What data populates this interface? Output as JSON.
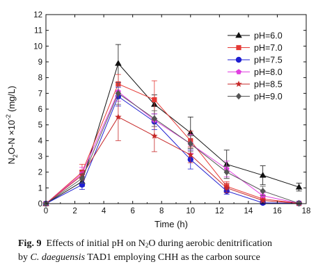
{
  "chart_data": {
    "type": "line",
    "xlabel": "Time (h)",
    "ylabel_parts": {
      "pre": "N",
      "sub": "2",
      "mid": "O-N ×10",
      "sup": "-2",
      "post": " (mg/L)"
    },
    "xlim": [
      0,
      18
    ],
    "ylim": [
      0,
      12
    ],
    "x_ticks": [
      0,
      2,
      4,
      6,
      8,
      10,
      12,
      14,
      16,
      18
    ],
    "y_ticks": [
      0,
      1,
      2,
      3,
      4,
      5,
      6,
      7,
      8,
      9,
      10,
      11,
      12
    ],
    "x": [
      0,
      2.5,
      5,
      7.5,
      10,
      12.5,
      15,
      17.5
    ],
    "legend_position": "top-right",
    "series": [
      {
        "name": "pH=6.0",
        "color": "#111111",
        "marker": "triangle",
        "values": [
          0,
          1.4,
          8.9,
          6.3,
          4.5,
          2.5,
          1.8,
          1.05
        ],
        "errors": [
          0,
          0.3,
          1.2,
          0.6,
          1.0,
          0.9,
          0.6,
          0.25
        ]
      },
      {
        "name": "pH=7.0",
        "color": "#e53935",
        "marker": "square",
        "values": [
          0,
          2.0,
          7.6,
          6.6,
          4.0,
          1.1,
          0.3,
          0.02
        ],
        "errors": [
          0,
          0.5,
          0.6,
          1.2,
          0.6,
          0.3,
          0.2,
          0.05
        ]
      },
      {
        "name": "pH=7.5",
        "color": "#1f1fd1",
        "marker": "circle",
        "values": [
          0,
          1.2,
          6.8,
          5.2,
          2.8,
          0.8,
          0.05,
          0.02
        ],
        "errors": [
          0,
          0.3,
          0.6,
          0.5,
          0.6,
          0.2,
          0.1,
          0.05
        ]
      },
      {
        "name": "pH=8.0",
        "color": "#e040e0",
        "marker": "pentagon",
        "values": [
          0,
          1.9,
          7.1,
          5.3,
          3.8,
          2.2,
          0.5,
          0.02
        ],
        "errors": [
          0,
          0.4,
          0.6,
          0.4,
          0.6,
          0.5,
          0.2,
          0.05
        ]
      },
      {
        "name": "pH=8.5",
        "color": "#c62828",
        "marker": "star",
        "values": [
          0,
          1.8,
          5.5,
          4.3,
          3.1,
          1.0,
          0.2,
          0.02
        ],
        "errors": [
          0,
          0.3,
          1.5,
          1.0,
          0.5,
          0.3,
          0.1,
          0.05
        ]
      },
      {
        "name": "pH=9.0",
        "color": "#555555",
        "marker": "diamond",
        "values": [
          0,
          1.6,
          7.0,
          5.4,
          3.8,
          2.0,
          0.8,
          0.02
        ],
        "errors": [
          0,
          0.3,
          0.7,
          0.5,
          0.5,
          0.4,
          0.3,
          0.05
        ]
      }
    ]
  },
  "caption": {
    "label": "Fig. 9",
    "line1_pre": "Effects of initial pH on N",
    "line1_sub": "2",
    "line1_post": "O during aerobic denitrification",
    "line2_pre": "by ",
    "line2_italic": "C. daeguensis",
    "line2_post": " TAD1 employing CHH as the carbon source"
  }
}
